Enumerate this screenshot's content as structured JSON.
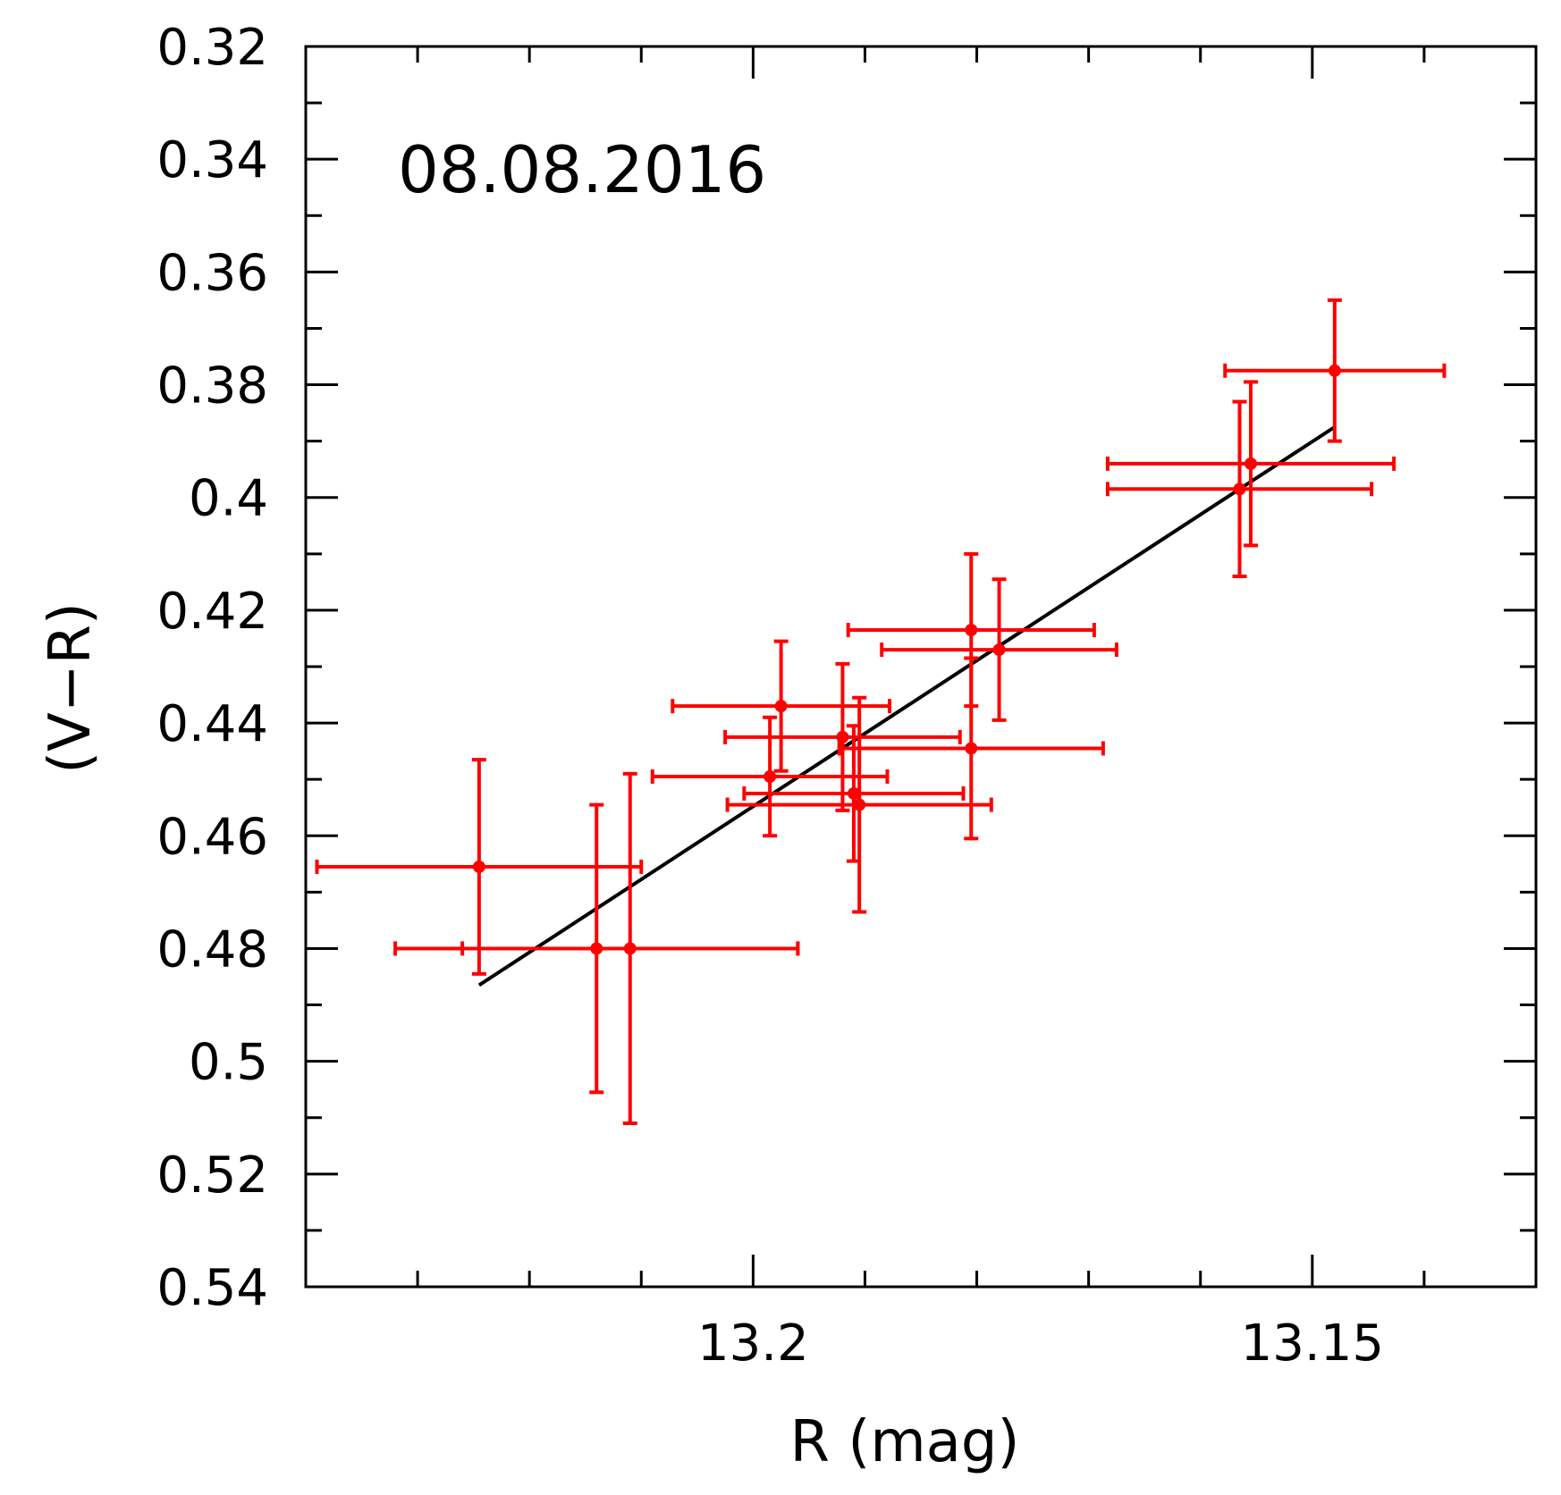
{
  "chart_data": {
    "type": "scatter",
    "annotation": "08.08.2016",
    "xlabel": "R (mag)",
    "ylabel": "(V−R)",
    "xlim": [
      13.24,
      13.13
    ],
    "ylim": [
      0.54,
      0.32
    ],
    "x_reversed": true,
    "y_reversed": true,
    "x_ticks": [
      13.2,
      13.15
    ],
    "x_tick_labels": [
      "13.2",
      "13.15"
    ],
    "y_ticks": [
      0.32,
      0.34,
      0.36,
      0.38,
      0.4,
      0.42,
      0.44,
      0.46,
      0.48,
      0.5,
      0.52,
      0.54
    ],
    "y_tick_labels": [
      "0.32",
      "0.34",
      "0.36",
      "0.38",
      "0.4",
      "0.42",
      "0.44",
      "0.46",
      "0.48",
      "0.5",
      "0.52",
      "0.54"
    ],
    "grid": false,
    "series": [
      {
        "color": "#ff0000",
        "points": [
          {
            "x": 13.2245,
            "y": 0.4655,
            "xerr": 0.0145,
            "yerr": 0.019
          },
          {
            "x": 13.214,
            "y": 0.48,
            "xerr": 0.018,
            "yerr": 0.0255
          },
          {
            "x": 13.211,
            "y": 0.48,
            "xerr": 0.015,
            "yerr": 0.031
          },
          {
            "x": 13.1985,
            "y": 0.4495,
            "xerr": 0.0105,
            "yerr": 0.0105
          },
          {
            "x": 13.1975,
            "y": 0.437,
            "xerr": 0.0097,
            "yerr": 0.0115
          },
          {
            "x": 13.192,
            "y": 0.4425,
            "xerr": 0.0105,
            "yerr": 0.013
          },
          {
            "x": 13.191,
            "y": 0.4525,
            "xerr": 0.0098,
            "yerr": 0.012
          },
          {
            "x": 13.1905,
            "y": 0.4545,
            "xerr": 0.0118,
            "yerr": 0.019
          },
          {
            "x": 13.1805,
            "y": 0.4235,
            "xerr": 0.011,
            "yerr": 0.0135
          },
          {
            "x": 13.1805,
            "y": 0.4445,
            "xerr": 0.0118,
            "yerr": 0.016
          },
          {
            "x": 13.178,
            "y": 0.427,
            "xerr": 0.0105,
            "yerr": 0.0125
          },
          {
            "x": 13.1565,
            "y": 0.3985,
            "xerr": 0.0118,
            "yerr": 0.0155
          },
          {
            "x": 13.1555,
            "y": 0.394,
            "xerr": 0.0128,
            "yerr": 0.0145
          },
          {
            "x": 13.148,
            "y": 0.3775,
            "xerr": 0.0098,
            "yerr": 0.0125
          }
        ]
      }
    ],
    "fit_line": {
      "color": "#000000",
      "x": [
        13.2245,
        13.148
      ],
      "y": [
        0.4865,
        0.3875
      ]
    }
  }
}
